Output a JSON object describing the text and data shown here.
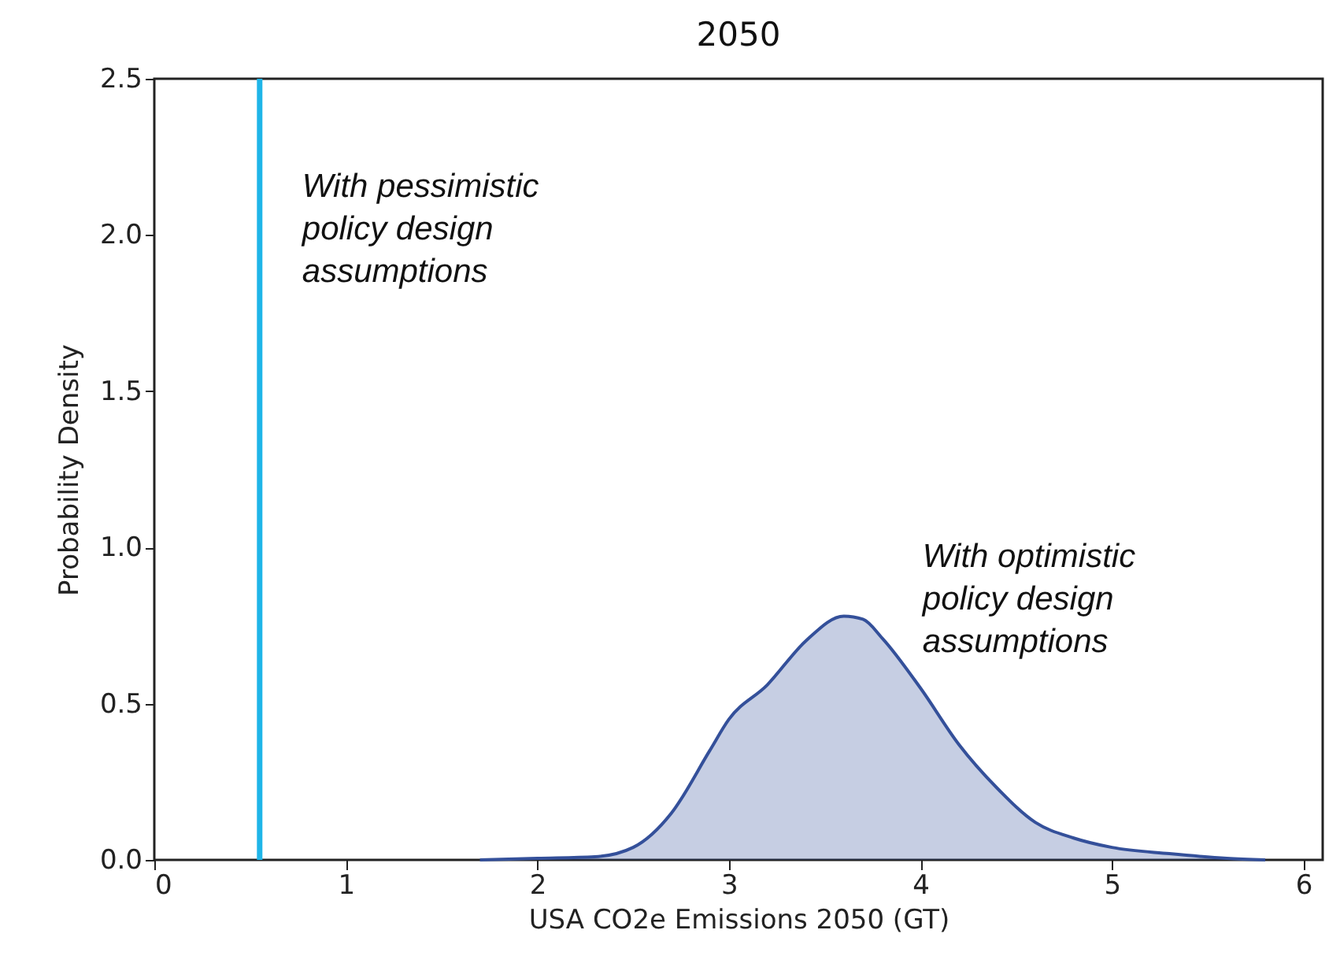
{
  "chart_data": {
    "type": "area",
    "title": "2050",
    "xlabel": "USA CO2e Emissions 2050 (GT)",
    "ylabel": "Probability Density",
    "x": [
      1.7,
      2.0,
      2.3,
      2.5,
      2.7,
      2.9,
      3.0,
      3.2,
      3.4,
      3.6,
      3.7,
      3.8,
      4.0,
      4.2,
      4.4,
      4.6,
      4.8,
      5.0,
      5.3,
      5.6,
      5.8
    ],
    "series": [
      {
        "name": "With optimistic\npolicy design\nassumptions",
        "color": "#34509a",
        "values": [
          0,
          0.005,
          0.01,
          0.04,
          0.15,
          0.35,
          0.45,
          0.56,
          0.7,
          0.78,
          0.77,
          0.71,
          0.55,
          0.37,
          0.23,
          0.12,
          0.07,
          0.04,
          0.02,
          0.005,
          0
        ]
      }
    ],
    "ref_lines": [
      {
        "axis": "x",
        "value": 0.55,
        "label": "With pessimistic\npolicy design\nassumptions",
        "color": "#1fb5e8"
      }
    ],
    "xlim": [
      0,
      6.1
    ],
    "xticks": [
      0,
      1,
      2,
      3,
      4,
      5,
      6
    ],
    "ylim": [
      0,
      2.5
    ],
    "yticks": [
      {
        "value": 0,
        "label": "0.0"
      },
      0.5,
      {
        "value": 1,
        "label": "1.0"
      },
      1.5,
      {
        "value": 2,
        "label": "2.0"
      },
      2.5
    ],
    "grid": false
  }
}
